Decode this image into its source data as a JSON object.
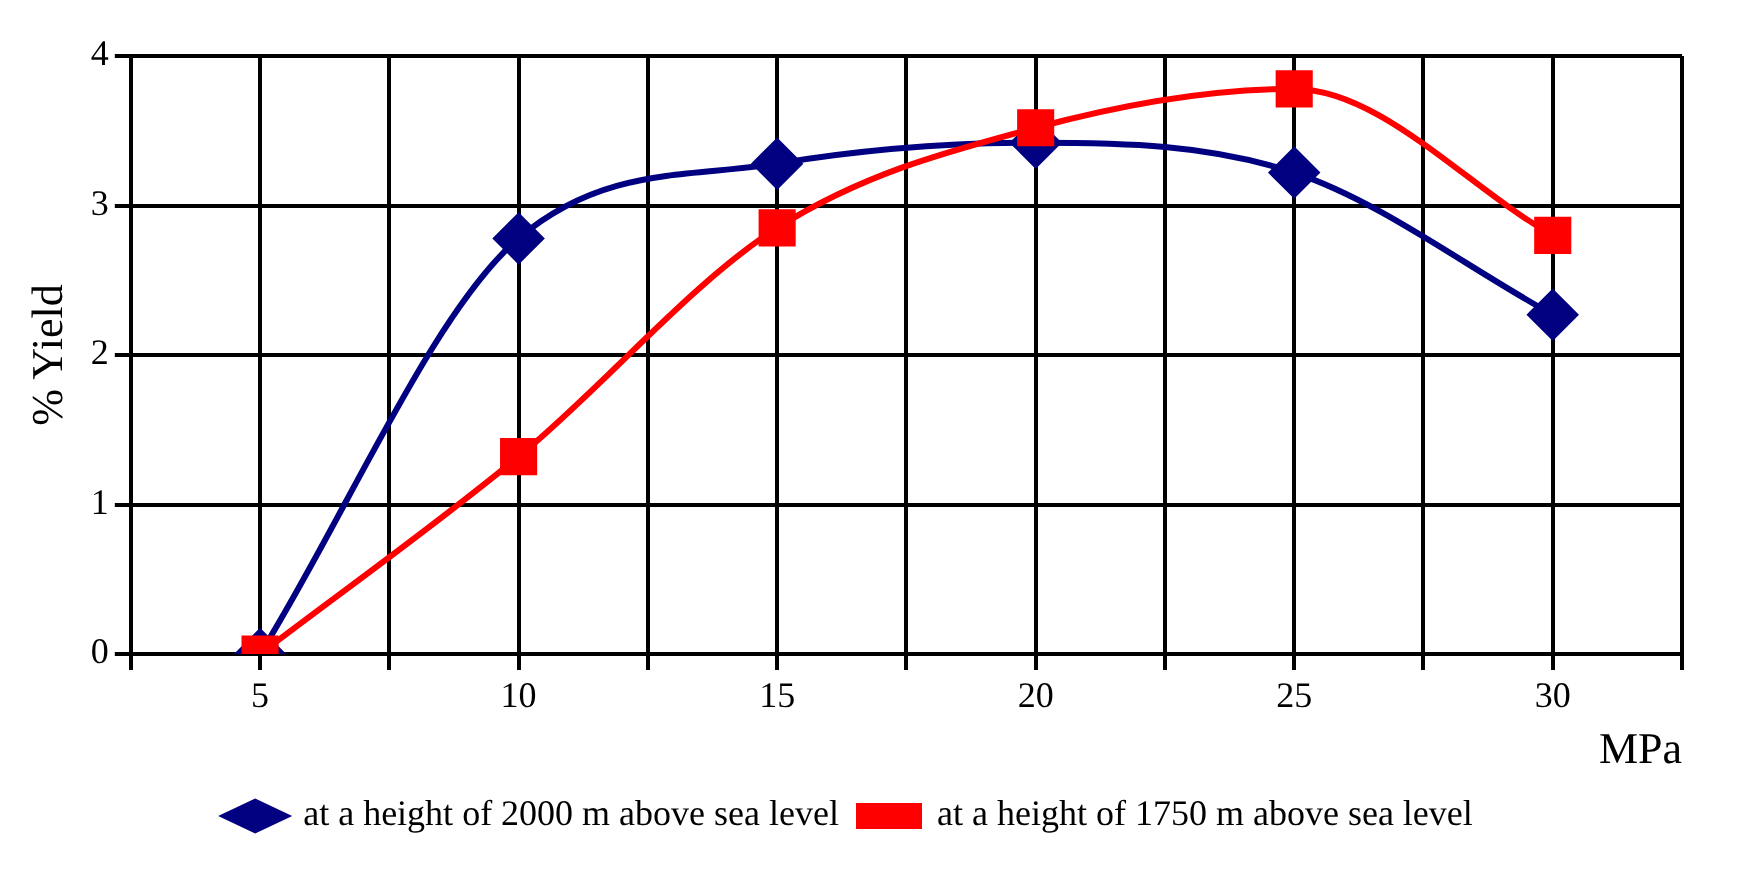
{
  "chart_data": {
    "type": "line",
    "xlabel": "MPa",
    "ylabel": "% Yield",
    "x": [
      5,
      10,
      15,
      20,
      25,
      30
    ],
    "series": [
      {
        "name": "at a height of 2000 m above sea level",
        "color": "#000080",
        "marker": "diamond",
        "values": [
          0,
          2.78,
          3.28,
          3.42,
          3.22,
          2.27
        ]
      },
      {
        "name": "at a height of 1750 m above sea level",
        "color": "#ff0000",
        "marker": "square",
        "values": [
          0,
          1.32,
          2.85,
          3.52,
          3.78,
          2.8
        ]
      }
    ],
    "xlim": [
      2.5,
      32.5
    ],
    "xticks": [
      {
        "value": 2.5,
        "label": null
      },
      5,
      {
        "value": 7.5,
        "label": null
      },
      10,
      {
        "value": 12.5,
        "label": null
      },
      15,
      {
        "value": 17.5,
        "label": null
      },
      20,
      {
        "value": 22.5,
        "label": null
      },
      25,
      {
        "value": 27.5,
        "label": null
      },
      30,
      {
        "value": 32.5,
        "label": null
      }
    ],
    "ylim": [
      0,
      4
    ],
    "yticks": [
      0,
      1,
      2,
      3,
      4
    ],
    "grid": true,
    "legend": "bottom",
    "line_style": "solid"
  }
}
